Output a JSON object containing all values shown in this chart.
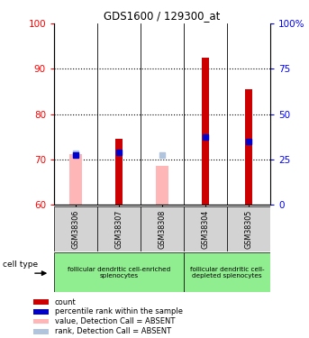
{
  "title": "GDS1600 / 129300_at",
  "samples": [
    "GSM38306",
    "GSM38307",
    "GSM38308",
    "GSM38304",
    "GSM38305"
  ],
  "ylim_left": [
    60,
    100
  ],
  "ylim_right": [
    0,
    100
  ],
  "right_ticks": [
    0,
    25,
    50,
    75,
    100
  ],
  "right_tick_labels": [
    "0",
    "25",
    "50",
    "75",
    "100%"
  ],
  "left_ticks": [
    60,
    70,
    80,
    90,
    100
  ],
  "dotted_lines": [
    70,
    80,
    90
  ],
  "red_bars_top": [
    60,
    74.5,
    60,
    92.5,
    85.5
  ],
  "pink_bars_top": [
    71.2,
    60,
    68.5,
    60,
    60
  ],
  "blue_marks": [
    71.0,
    71.5,
    60,
    75.0,
    74.0
  ],
  "light_blue_marks": [
    71.3,
    60,
    71.0,
    60,
    60
  ],
  "bar_base": 60,
  "red_bar_width": 0.18,
  "pink_bar_width": 0.28,
  "sample_box_color": "#d3d3d3",
  "green_color": "#90EE90",
  "legend_items": [
    {
      "label": "count",
      "color": "#cc0000"
    },
    {
      "label": "percentile rank within the sample",
      "color": "#0000cc"
    },
    {
      "label": "value, Detection Call = ABSENT",
      "color": "#ffb6b6"
    },
    {
      "label": "rank, Detection Call = ABSENT",
      "color": "#b0c4de"
    }
  ]
}
